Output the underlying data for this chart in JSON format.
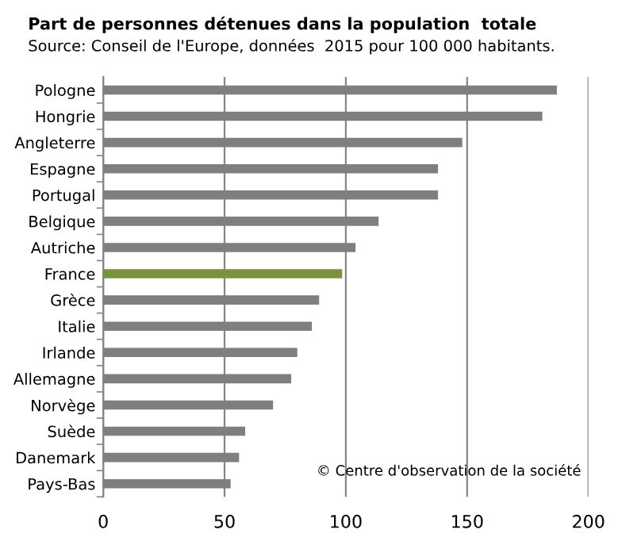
{
  "chart_data": {
    "type": "bar",
    "orientation": "horizontal",
    "title": "Part de personnes détenues dans la population  totale",
    "subtitle": "Source: Conseil de l'Europe, données  2015 pour 100 000 habitants.",
    "categories": [
      "Pologne",
      "Hongrie",
      "Angleterre",
      "Espagne",
      "Portugal",
      "Belgique",
      "Autriche",
      "France",
      "Grèce",
      "Italie",
      "Irlande",
      "Allemagne",
      "Norvège",
      "Suède",
      "Danemark",
      "Pays-Bas"
    ],
    "values": [
      187,
      181,
      148,
      138,
      138,
      113.5,
      104,
      98.5,
      89,
      86,
      80,
      77.5,
      70,
      58.5,
      56,
      52.5
    ],
    "colors": [
      "#7f7f7f",
      "#7f7f7f",
      "#7f7f7f",
      "#7f7f7f",
      "#7f7f7f",
      "#7f7f7f",
      "#7f7f7f",
      "#77933c",
      "#7f7f7f",
      "#7f7f7f",
      "#7f7f7f",
      "#7f7f7f",
      "#7f7f7f",
      "#7f7f7f",
      "#7f7f7f",
      "#7f7f7f"
    ],
    "xlim": [
      0,
      200
    ],
    "xticks": [
      0,
      50,
      100,
      150,
      200
    ],
    "grid": "x",
    "annotations": [
      "© Centre d'observation de la société"
    ]
  }
}
